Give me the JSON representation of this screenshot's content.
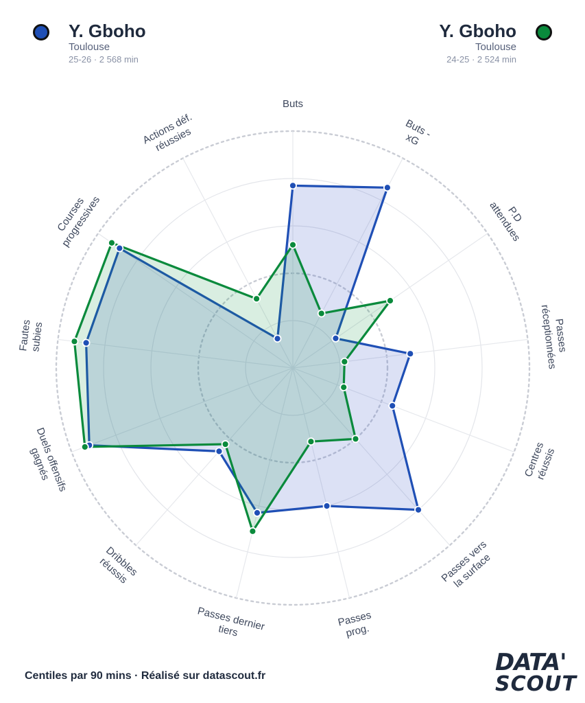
{
  "players": [
    {
      "name": "Y. Gboho",
      "team": "Toulouse",
      "meta": "25-26 · 2 568 min",
      "color": "#1f4fb5"
    },
    {
      "name": "Y. Gboho",
      "team": "Toulouse",
      "meta": "24-25 · 2 524 min",
      "color": "#0a8a3c"
    }
  ],
  "footer": "Centiles par 90 mins · Réalisé sur datascout.fr",
  "logo": {
    "line1": "DATA'",
    "line2": "SCOUT"
  },
  "chart_data": {
    "type": "radar",
    "range": [
      0,
      100
    ],
    "rings": [
      20,
      40,
      60,
      80,
      100
    ],
    "categories": [
      [
        "Buts"
      ],
      [
        "Buts -",
        "xG"
      ],
      [
        "P.D",
        "attendues"
      ],
      [
        "Passes",
        "réceptionnées"
      ],
      [
        "Centres",
        "réussis"
      ],
      [
        "Passes vers",
        "la surface"
      ],
      [
        "Passes",
        "prog."
      ],
      [
        "Passes dernier",
        "tiers"
      ],
      [
        "Dribbles",
        "réussis"
      ],
      [
        "Duels offensifs",
        "gagnés"
      ],
      [
        "Fautes",
        "subies"
      ],
      [
        "Courses",
        "progressives"
      ],
      [
        "Actions déf.",
        "réussies"
      ]
    ],
    "series": [
      {
        "name": "25-26",
        "values": [
          77,
          86,
          22,
          50,
          45,
          80,
          60,
          63,
          47,
          92,
          88,
          89,
          14
        ]
      },
      {
        "name": "24-25",
        "values": [
          52,
          26,
          50,
          22,
          23,
          40,
          32,
          71,
          43,
          94,
          93,
          93,
          33
        ]
      }
    ]
  }
}
